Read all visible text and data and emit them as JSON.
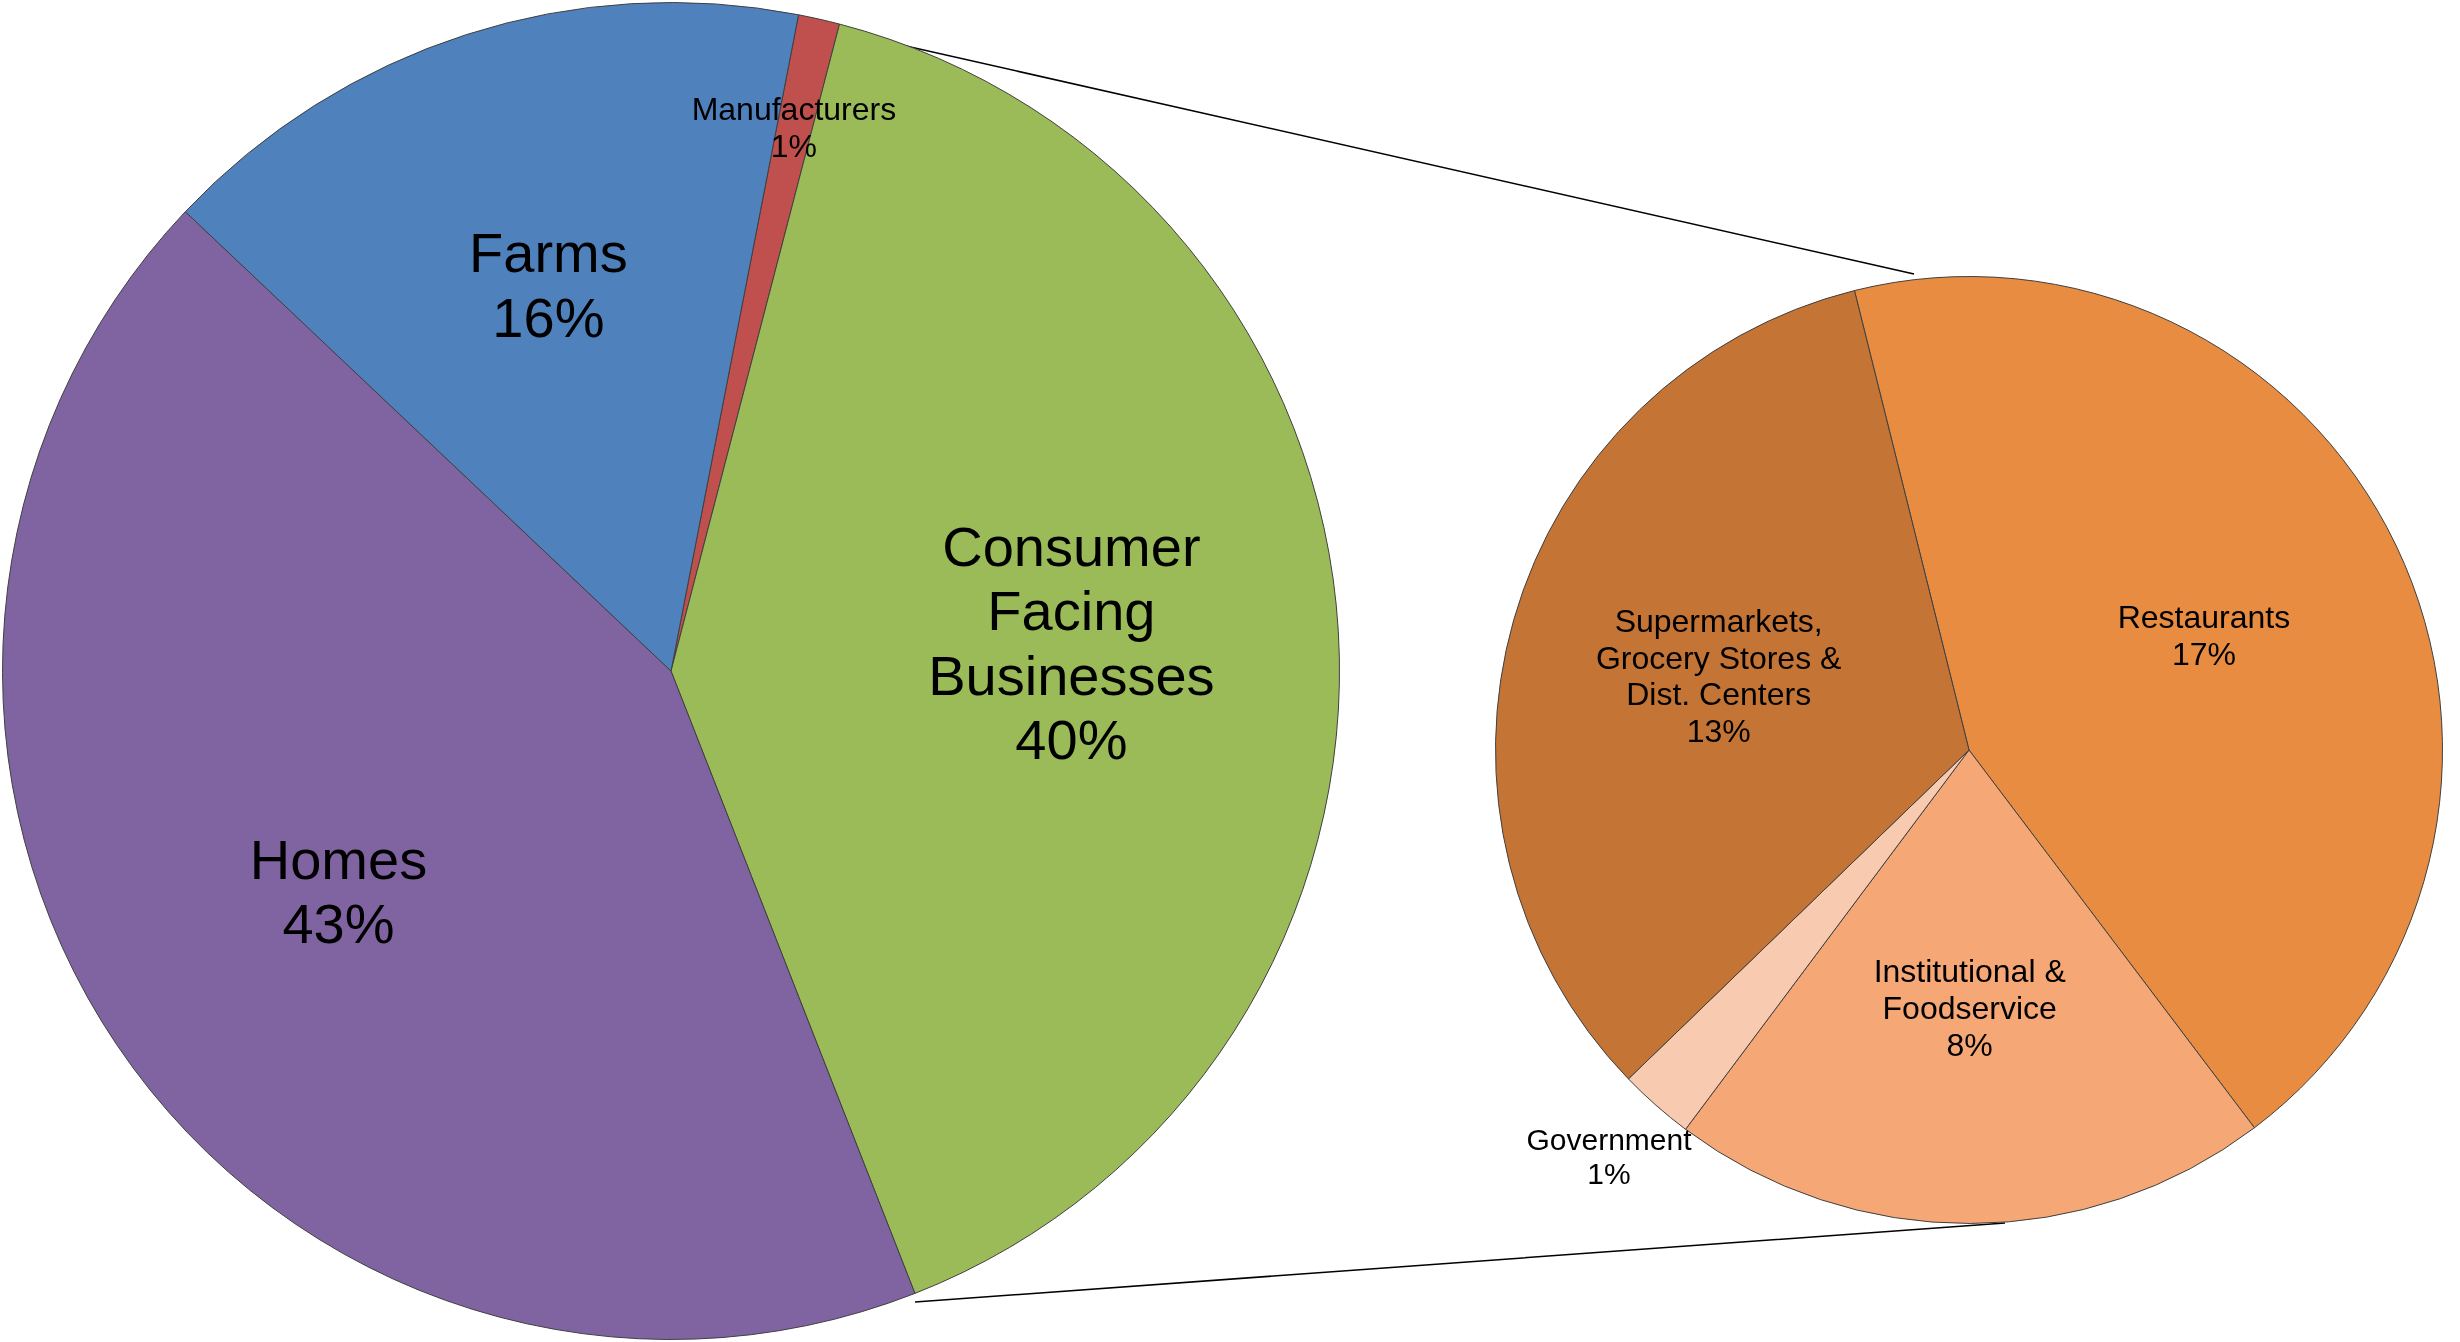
{
  "chart_data": [
    {
      "type": "pie",
      "categories": [
        "Manufacturers",
        "Consumer Facing Businesses",
        "Homes",
        "Farms"
      ],
      "values": [
        1,
        40,
        43,
        16
      ],
      "colors": [
        "#c0504d",
        "#9bbb59",
        "#8064a2",
        "#4f81bd"
      ],
      "value_labels": [
        "1%",
        "40%",
        "43%",
        "16%"
      ]
    },
    {
      "type": "pie",
      "categories": [
        "Restaurants",
        "Institutional & Foodservice",
        "Government",
        "Supermarkets, Grocery Stores & Dist. Centers"
      ],
      "values": [
        17,
        8,
        1,
        13
      ],
      "colors": [
        "#e88c42",
        "#f5a876",
        "#f8cbb0",
        "#c47535"
      ],
      "value_labels": [
        "17%",
        "8%",
        "1%",
        "13%"
      ]
    }
  ]
}
